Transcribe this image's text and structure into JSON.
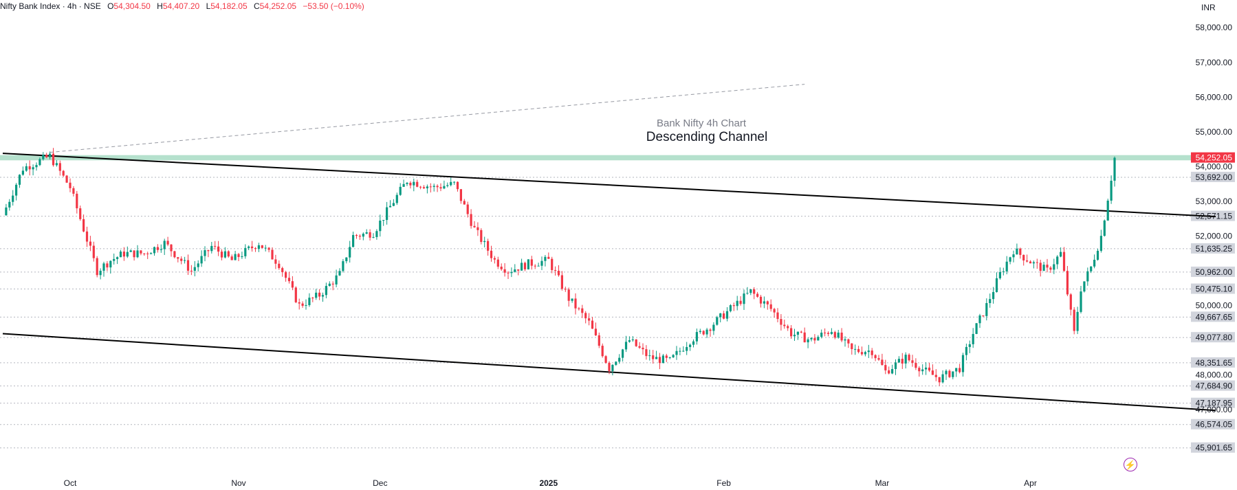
{
  "header": {
    "symbol": "Nifty Bank Index · 4h · NSE",
    "open_label": "O",
    "open": "54,304.50",
    "high_label": "H",
    "high": "54,407.20",
    "low_label": "L",
    "low": "54,182.05",
    "close_label": "C",
    "close": "54,252.05",
    "change": "−53.50 (−0.10%)"
  },
  "currency": "INR",
  "icons": {
    "replay": "lightning-icon"
  },
  "colors": {
    "up": "#089981",
    "down": "#f23645",
    "resistance_band": "#a8dcc4",
    "channel": "#000000",
    "level_line": "#b2b5be"
  },
  "chart_data": {
    "type": "candlestick",
    "title": "Bank Nifty 4h Chart",
    "subtitle": "Descending Channel",
    "ylim": [
      45500,
      58400
    ],
    "y_ticks": [
      {
        "value": 58000,
        "label": "58,000.00"
      },
      {
        "value": 57000,
        "label": "57,000.00"
      },
      {
        "value": 56000,
        "label": "56,000.00"
      },
      {
        "value": 55000,
        "label": "55,000.00"
      },
      {
        "value": 54000,
        "label": "54,000.00"
      },
      {
        "value": 53000,
        "label": "53,000.00"
      },
      {
        "value": 52000,
        "label": "52,000.00"
      },
      {
        "value": 50000,
        "label": "50,000.00"
      },
      {
        "value": 48000,
        "label": "48,000.00"
      },
      {
        "value": 47000,
        "label": "47,000.00"
      }
    ],
    "x_ticks": [
      {
        "label": "Oct",
        "bar": 20
      },
      {
        "label": "Nov",
        "bar": 70
      },
      {
        "label": "Dec",
        "bar": 112
      },
      {
        "label": "2025",
        "bar": 162
      },
      {
        "label": "Feb",
        "bar": 214
      },
      {
        "label": "Mar",
        "bar": 261
      },
      {
        "label": "Apr",
        "bar": 305
      }
    ],
    "levels": [
      {
        "value": 53692.0,
        "label": "53,692.00"
      },
      {
        "value": 52571.15,
        "label": "52,571.15"
      },
      {
        "value": 51635.25,
        "label": "51,635.25"
      },
      {
        "value": 50962.0,
        "label": "50,962.00"
      },
      {
        "value": 50475.1,
        "label": "50,475.10"
      },
      {
        "value": 49667.65,
        "label": "49,667.65"
      },
      {
        "value": 49077.8,
        "label": "49,077.80"
      },
      {
        "value": 48351.65,
        "label": "48,351.65"
      },
      {
        "value": 47684.9,
        "label": "47,684.90"
      },
      {
        "value": 47187.95,
        "label": "47,187.95"
      },
      {
        "value": 46574.05,
        "label": "46,574.05"
      },
      {
        "value": 45901.65,
        "label": "45,901.65"
      }
    ],
    "last_price": {
      "value": 54252.05,
      "label": "54,252.05"
    },
    "resistance_band": [
      54180,
      54330
    ],
    "channel_upper": [
      {
        "bar": 0,
        "price": 54380
      },
      {
        "bar": 360,
        "price": 52560
      }
    ],
    "channel_lower": [
      {
        "bar": 0,
        "price": 49190
      },
      {
        "bar": 360,
        "price": 46980
      }
    ],
    "dashed_trend": [
      {
        "bar": 14,
        "price": 54410
      },
      {
        "bar": 238,
        "price": 56370
      }
    ],
    "candles_bars": 330,
    "close_path": [
      {
        "bar": 0,
        "price": 52600
      },
      {
        "bar": 6,
        "price": 53950
      },
      {
        "bar": 14,
        "price": 54300
      },
      {
        "bar": 20,
        "price": 53400
      },
      {
        "bar": 24,
        "price": 52200
      },
      {
        "bar": 28,
        "price": 51000
      },
      {
        "bar": 32,
        "price": 51300
      },
      {
        "bar": 36,
        "price": 51500
      },
      {
        "bar": 42,
        "price": 51500
      },
      {
        "bar": 48,
        "price": 51800
      },
      {
        "bar": 56,
        "price": 51000
      },
      {
        "bar": 62,
        "price": 51700
      },
      {
        "bar": 68,
        "price": 51300
      },
      {
        "bar": 76,
        "price": 51800
      },
      {
        "bar": 82,
        "price": 51200
      },
      {
        "bar": 88,
        "price": 50000
      },
      {
        "bar": 94,
        "price": 50300
      },
      {
        "bar": 100,
        "price": 50900
      },
      {
        "bar": 104,
        "price": 52000
      },
      {
        "bar": 110,
        "price": 52100
      },
      {
        "bar": 116,
        "price": 53000
      },
      {
        "bar": 120,
        "price": 53600
      },
      {
        "bar": 128,
        "price": 53400
      },
      {
        "bar": 134,
        "price": 53500
      },
      {
        "bar": 140,
        "price": 52200
      },
      {
        "bar": 146,
        "price": 51300
      },
      {
        "bar": 150,
        "price": 51000
      },
      {
        "bar": 156,
        "price": 51200
      },
      {
        "bar": 162,
        "price": 51300
      },
      {
        "bar": 168,
        "price": 50200
      },
      {
        "bar": 174,
        "price": 49500
      },
      {
        "bar": 180,
        "price": 48200
      },
      {
        "bar": 186,
        "price": 49000
      },
      {
        "bar": 192,
        "price": 48500
      },
      {
        "bar": 198,
        "price": 48400
      },
      {
        "bar": 204,
        "price": 49000
      },
      {
        "bar": 210,
        "price": 49400
      },
      {
        "bar": 216,
        "price": 49900
      },
      {
        "bar": 222,
        "price": 50400
      },
      {
        "bar": 228,
        "price": 49900
      },
      {
        "bar": 234,
        "price": 49200
      },
      {
        "bar": 240,
        "price": 49000
      },
      {
        "bar": 246,
        "price": 49300
      },
      {
        "bar": 252,
        "price": 48700
      },
      {
        "bar": 258,
        "price": 48700
      },
      {
        "bar": 262,
        "price": 48100
      },
      {
        "bar": 268,
        "price": 48500
      },
      {
        "bar": 274,
        "price": 48100
      },
      {
        "bar": 278,
        "price": 47900
      },
      {
        "bar": 284,
        "price": 48200
      },
      {
        "bar": 288,
        "price": 49200
      },
      {
        "bar": 292,
        "price": 50000
      },
      {
        "bar": 296,
        "price": 50900
      },
      {
        "bar": 300,
        "price": 51600
      },
      {
        "bar": 306,
        "price": 51200
      },
      {
        "bar": 310,
        "price": 51000
      },
      {
        "bar": 314,
        "price": 51500
      },
      {
        "bar": 318,
        "price": 49200
      },
      {
        "bar": 320,
        "price": 50500
      },
      {
        "bar": 323,
        "price": 51100
      },
      {
        "bar": 326,
        "price": 52000
      },
      {
        "bar": 328,
        "price": 53100
      },
      {
        "bar": 330,
        "price": 54250
      }
    ]
  }
}
